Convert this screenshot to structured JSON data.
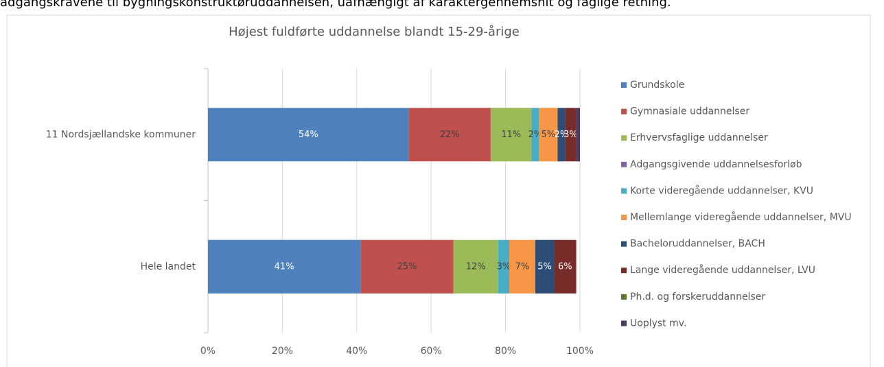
{
  "caption": "adgangskravene til bygningskonstruktøruddannelsen, uafhængigt af karaktergennemsnit og faglige retning.",
  "chart_data": {
    "type": "stacked_barh",
    "title": "Højest fuldførte uddannelse blandt 15-29-årige",
    "categories": [
      "11 Nordsjællandske kommuner",
      "Hele landet"
    ],
    "series": [
      {
        "name": "Grundskole",
        "color": "#4f81bd",
        "values": [
          54,
          41
        ],
        "value_labels": [
          "54%",
          "41%"
        ]
      },
      {
        "name": "Gymnasiale uddannelser",
        "color": "#c0504d",
        "values": [
          22,
          25
        ],
        "value_labels": [
          "22%",
          "25%"
        ]
      },
      {
        "name": "Erhvervsfaglige uddannelser",
        "color": "#9bbb59",
        "values": [
          11,
          12
        ],
        "value_labels": [
          "11%",
          "12%"
        ]
      },
      {
        "name": "Adgangsgivende uddannelsesforløb",
        "color": "#8064a2",
        "values": [
          0,
          0
        ],
        "value_labels": [
          null,
          null
        ]
      },
      {
        "name": "Korte videregående uddannelser, KVU",
        "color": "#4bacc6",
        "values": [
          2,
          3
        ],
        "value_labels": [
          "2%",
          "3%"
        ]
      },
      {
        "name": "Mellemlange videregående uddannelser, MVU",
        "color": "#f79646",
        "values": [
          5,
          7
        ],
        "value_labels": [
          "5%",
          "7%"
        ]
      },
      {
        "name": "Bacheloruddannelser, BACH",
        "color": "#2c4d75",
        "values": [
          2,
          5
        ],
        "value_labels": [
          "2%",
          "5%"
        ]
      },
      {
        "name": "Lange videregående uddannelser, LVU",
        "color": "#772c2a",
        "values": [
          3,
          6
        ],
        "value_labels": [
          "3%",
          "6%"
        ]
      },
      {
        "name": "Ph.d. og forskeruddannelser",
        "color": "#5f7530",
        "values": [
          0,
          0
        ],
        "value_labels": [
          null,
          null
        ]
      },
      {
        "name": "Uoplyst mv.",
        "color": "#4d3b62",
        "values": [
          1,
          0
        ],
        "value_labels": [
          null,
          null
        ]
      }
    ],
    "xlim": [
      0,
      100
    ],
    "xticks": [
      {
        "value": 0,
        "label": "0%"
      },
      {
        "value": 20,
        "label": "20%"
      },
      {
        "value": 40,
        "label": "40%"
      },
      {
        "value": 60,
        "label": "60%"
      },
      {
        "value": 80,
        "label": "80%"
      },
      {
        "value": 100,
        "label": "100%"
      }
    ],
    "grid": true,
    "legend": "right"
  }
}
